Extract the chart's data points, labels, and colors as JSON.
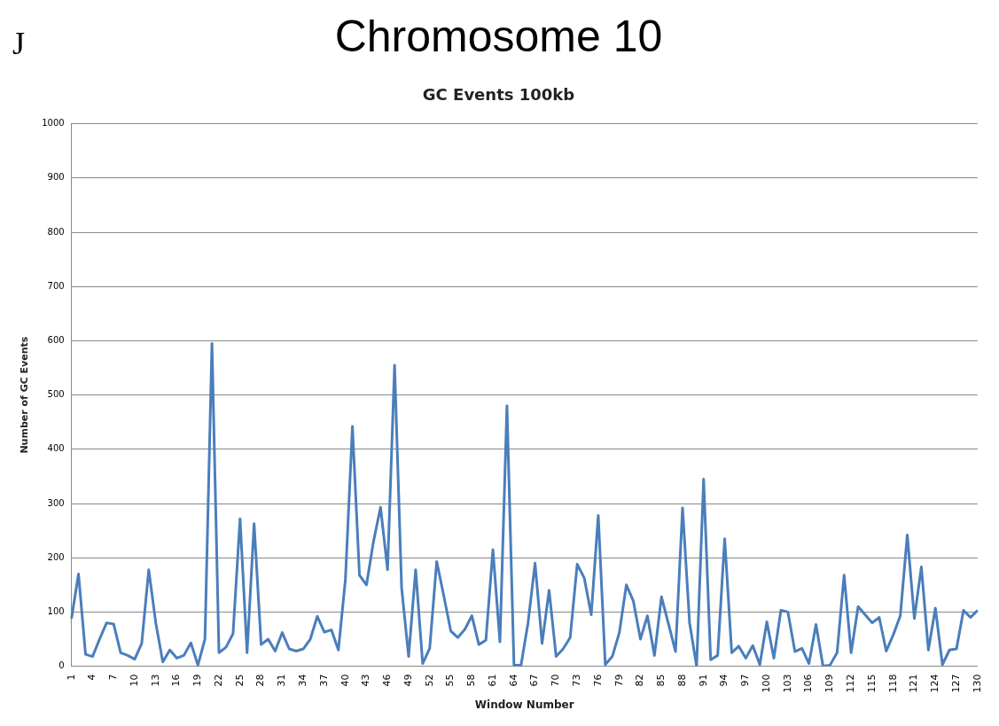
{
  "chart_data": {
    "type": "line",
    "title": "Chromosome 10",
    "subtitle": "GC Events 100kb",
    "xlabel": "Window Number",
    "ylabel": "Number of GC Events",
    "annotations": [
      "J"
    ],
    "categories": [
      "1",
      null,
      null,
      "4",
      null,
      null,
      "7",
      null,
      null,
      "10",
      null,
      null,
      "13",
      null,
      null,
      "16",
      null,
      null,
      "19",
      null,
      null,
      "22",
      null,
      null,
      "25",
      null,
      null,
      "28",
      null,
      null,
      "31",
      null,
      null,
      "34",
      null,
      null,
      "37",
      null,
      null,
      "40",
      null,
      null,
      "43",
      null,
      null,
      "46",
      null,
      null,
      "49",
      null,
      null,
      "52",
      null,
      null,
      "55",
      null,
      null,
      "58",
      null,
      null,
      "61",
      null,
      null,
      "64",
      null,
      null,
      "67",
      null,
      null,
      "70",
      null,
      null,
      "73",
      null,
      null,
      "76",
      null,
      null,
      "79",
      null,
      null,
      "82",
      null,
      null,
      "85",
      null,
      null,
      "88",
      null,
      null,
      "91",
      null,
      null,
      "94",
      null,
      null,
      "97",
      null,
      null,
      "100",
      null,
      null,
      "103",
      null,
      null,
      "106",
      null,
      null,
      "109",
      null,
      null,
      "112",
      null,
      null,
      "115",
      null,
      null,
      "118",
      null,
      null,
      "121",
      null,
      null,
      "124",
      null,
      null,
      "127",
      null,
      null,
      "130"
    ],
    "series": [
      {
        "color": "#4a7ebb",
        "values": [
          88,
          170,
          22,
          18,
          50,
          80,
          78,
          25,
          20,
          13,
          42,
          178,
          80,
          8,
          30,
          15,
          20,
          43,
          2,
          50,
          595,
          25,
          35,
          60,
          272,
          25,
          263,
          40,
          50,
          28,
          62,
          32,
          28,
          32,
          50,
          92,
          63,
          67,
          30,
          160,
          442,
          168,
          150,
          230,
          293,
          178,
          555,
          145,
          18,
          178,
          5,
          33,
          193,
          130,
          65,
          53,
          68,
          93,
          40,
          48,
          215,
          45,
          480,
          2,
          2,
          80,
          190,
          42,
          140,
          18,
          32,
          53,
          188,
          163,
          95,
          278,
          3,
          18,
          62,
          150,
          120,
          50,
          93,
          20,
          128,
          78,
          27,
          292,
          80,
          0,
          345,
          12,
          20,
          235,
          25,
          37,
          15,
          38,
          3,
          82,
          15,
          103,
          100,
          27,
          33,
          5,
          77,
          0,
          2,
          25,
          168,
          25,
          110,
          95,
          80,
          90,
          28,
          58,
          93,
          242,
          88,
          183,
          30,
          107,
          3,
          30,
          32,
          103,
          90,
          103
        ]
      }
    ],
    "ylim": [
      0,
      1000
    ],
    "yticks": [
      0,
      100,
      200,
      300,
      400,
      500,
      600,
      700,
      800,
      900,
      1000
    ],
    "grid": "y",
    "legend": false,
    "marker": "none",
    "line_style": "solid"
  }
}
